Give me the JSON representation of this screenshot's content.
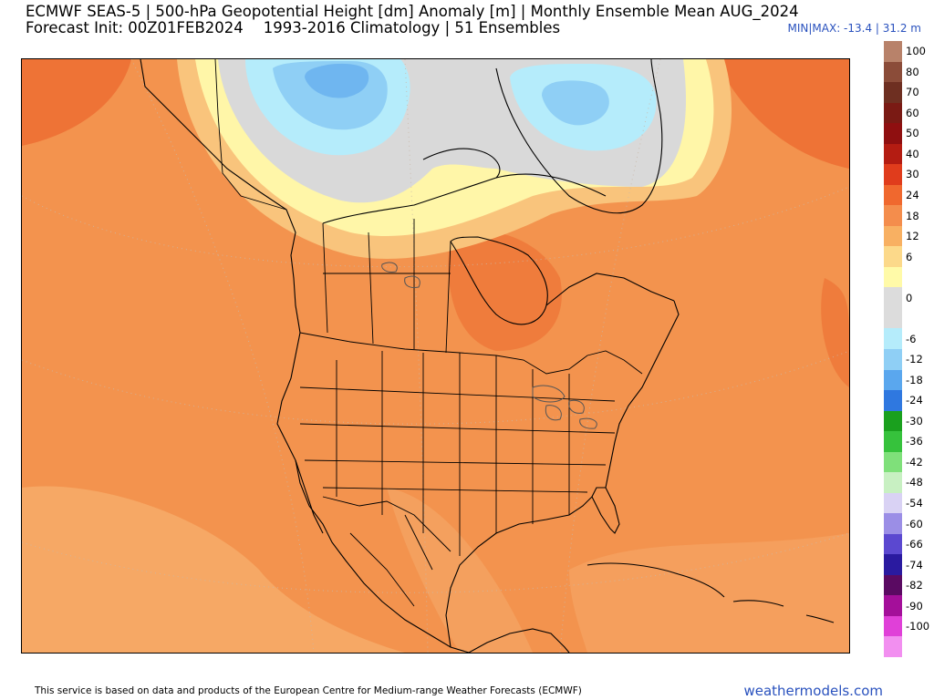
{
  "header": {
    "title_line1": "ECMWF SEAS-5 | 500-hPa Geopotential Height [dm] Anomaly [m] | Monthly Ensemble Mean AUG_2024",
    "title_line2_init": "Forecast Init: 00Z01FEB2024",
    "title_line2_clim": "1993-2016 Climatology | 51 Ensembles",
    "minmax": "MIN|MAX: -13.4 | 31.2 m"
  },
  "colorbar": {
    "levels": [
      {
        "label": "100",
        "color": "#b8826a"
      },
      {
        "label": "80",
        "color": "#8b4c39"
      },
      {
        "label": "70",
        "color": "#6e2f21"
      },
      {
        "label": "60",
        "color": "#7a1a14"
      },
      {
        "label": "50",
        "color": "#8f0f10"
      },
      {
        "label": "40",
        "color": "#b41c12"
      },
      {
        "label": "30",
        "color": "#e03c1c"
      },
      {
        "label": "24",
        "color": "#f0682e"
      },
      {
        "label": "18",
        "color": "#f48d4c"
      },
      {
        "label": "12",
        "color": "#f8b062"
      },
      {
        "label": "6",
        "color": "#fcd98a"
      },
      {
        "label": "",
        "color": "#fffaa8"
      },
      {
        "label": "0",
        "color": "#dcdcdc"
      },
      {
        "label": "",
        "color": "#dcdcdc"
      },
      {
        "label": "-6",
        "color": "#b5ecfb"
      },
      {
        "label": "-12",
        "color": "#8fcff5"
      },
      {
        "label": "-18",
        "color": "#5aa7ee"
      },
      {
        "label": "-24",
        "color": "#2f78e0"
      },
      {
        "label": "-30",
        "color": "#1aa01e"
      },
      {
        "label": "-36",
        "color": "#36c23c"
      },
      {
        "label": "-42",
        "color": "#7fe07a"
      },
      {
        "label": "-48",
        "color": "#c8f0c2"
      },
      {
        "label": "-54",
        "color": "#d9d2f4"
      },
      {
        "label": "-60",
        "color": "#9b8ee6"
      },
      {
        "label": "-66",
        "color": "#5b48d0"
      },
      {
        "label": "-74",
        "color": "#2a1aa0"
      },
      {
        "label": "-82",
        "color": "#5a0a62"
      },
      {
        "label": "-90",
        "color": "#a40f9a"
      },
      {
        "label": "-100",
        "color": "#e040d8"
      },
      {
        "label": "",
        "color": "#f28ff0"
      }
    ]
  },
  "footer": {
    "attribution": "This service is based on data and products of the European Centre for Medium-range Weather Forecasts (ECMWF)",
    "site": "weathermodels.com"
  },
  "map": {
    "colors": {
      "base": "#f3934e",
      "deep_orange": "#ee7336",
      "light_orange": "#f6a865",
      "pale": "#f9c47c",
      "yellow": "#fff6a8",
      "gray": "#d9d9d9",
      "cyan": "#b5ecfb",
      "light_blue": "#8fcff5",
      "blue": "#5aa7ee"
    }
  }
}
